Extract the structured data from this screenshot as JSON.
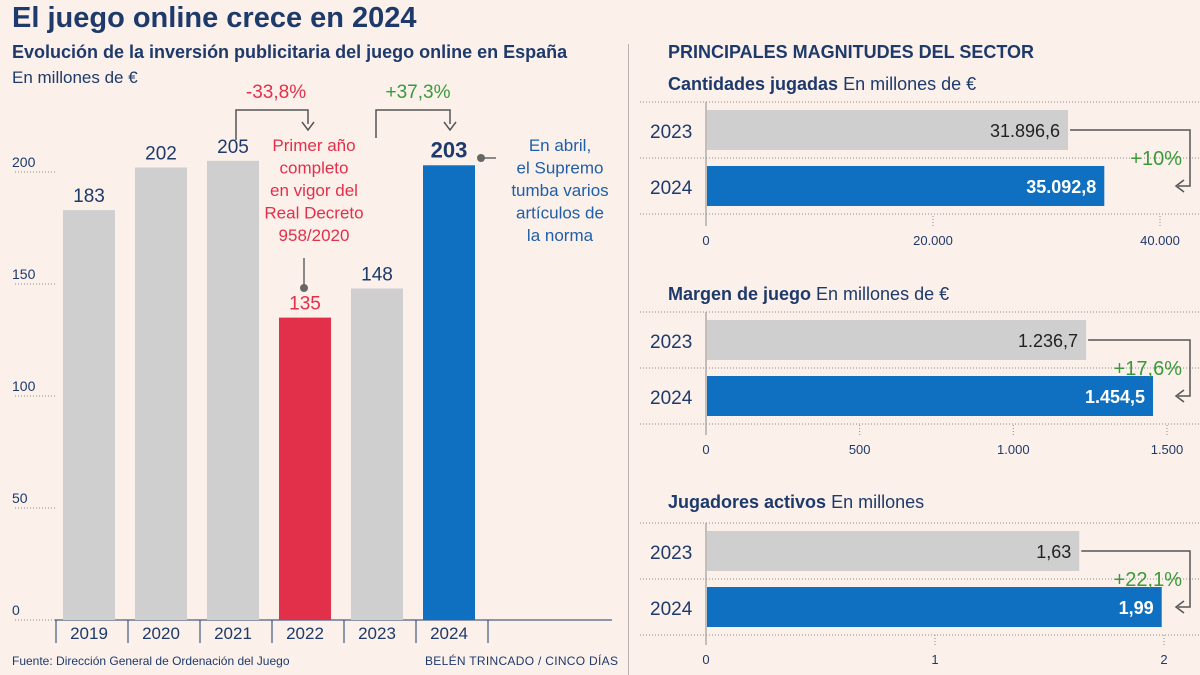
{
  "title": "El juego online crece en 2024",
  "left": {
    "subtitle": "Evolución de la inversión publicitaria del juego online en España",
    "unit": "En millones de €",
    "source": "Fuente: Dirección General de Ordenación del Juego",
    "credit": "BELÉN TRINCADO / CINCO DÍAS",
    "annotations": {
      "drop_pct": "-33,8%",
      "rise_pct": "+37,3%",
      "note_2022": [
        "Primer año",
        "completo",
        "en vigor del",
        "Real Decreto",
        "958/2020"
      ],
      "note_2024": [
        "En abril,",
        "el Supremo",
        "tumba varios",
        "artículos de",
        "la norma"
      ]
    }
  },
  "right": {
    "title": "PRINCIPALES MAGNITUDES DEL SECTOR",
    "panels": [
      {
        "title_bold": "Cantidades jugadas",
        "title_unit": "En millones de €",
        "change": "+10%"
      },
      {
        "title_bold": "Margen de juego",
        "title_unit": "En millones de €",
        "change": "+17,6%"
      },
      {
        "title_bold": "Jugadores activos",
        "title_unit": "En millones",
        "change": "+22,1%"
      }
    ]
  },
  "colors": {
    "background": "#fbf0ea",
    "navy": "#1d3a6b",
    "gray_bar": "#cfcfcf",
    "red": "#e2304b",
    "blue": "#0f6fc0",
    "green": "#3a9a3a",
    "axis": "#8c8c8c"
  },
  "chart_data": [
    {
      "type": "bar",
      "title": "Evolución de la inversión publicitaria del juego online en España",
      "ylabel": "En millones de €",
      "categories": [
        "2019",
        "2020",
        "2021",
        "2022",
        "2023",
        "2024"
      ],
      "values": [
        183,
        202,
        205,
        135,
        148,
        203
      ],
      "value_labels": [
        "183",
        "202",
        "205",
        "135",
        "148",
        "203"
      ],
      "highlight": {
        "2022": "red",
        "2024": "blue"
      },
      "ylim": [
        0,
        200
      ],
      "yticks": [
        0,
        50,
        100,
        150,
        200
      ],
      "ytick_labels": [
        "0",
        "50",
        "100",
        "150",
        "200"
      ]
    },
    {
      "type": "bar",
      "orientation": "horizontal",
      "title": "Cantidades jugadas",
      "categories": [
        "2023",
        "2024"
      ],
      "values": [
        31896.6,
        35092.8
      ],
      "value_labels": [
        "31.896,6",
        "35.092,8"
      ],
      "xlim": [
        0,
        40000
      ],
      "xticks": [
        0,
        20000,
        40000
      ],
      "xtick_labels": [
        "0",
        "20.000",
        "40.000"
      ]
    },
    {
      "type": "bar",
      "orientation": "horizontal",
      "title": "Margen de juego",
      "categories": [
        "2023",
        "2024"
      ],
      "values": [
        1236.7,
        1454.5
      ],
      "value_labels": [
        "1.236,7",
        "1.454,5"
      ],
      "xlim": [
        0,
        1500
      ],
      "xticks": [
        0,
        500,
        1000,
        1500
      ],
      "xtick_labels": [
        "0",
        "500",
        "1.000",
        "1.500"
      ]
    },
    {
      "type": "bar",
      "orientation": "horizontal",
      "title": "Jugadores activos",
      "categories": [
        "2023",
        "2024"
      ],
      "values": [
        1.63,
        1.99
      ],
      "value_labels": [
        "1,63",
        "1,99"
      ],
      "xlim": [
        0,
        2
      ],
      "xticks": [
        0,
        1,
        2
      ],
      "xtick_labels": [
        "0",
        "1",
        "2"
      ]
    }
  ]
}
